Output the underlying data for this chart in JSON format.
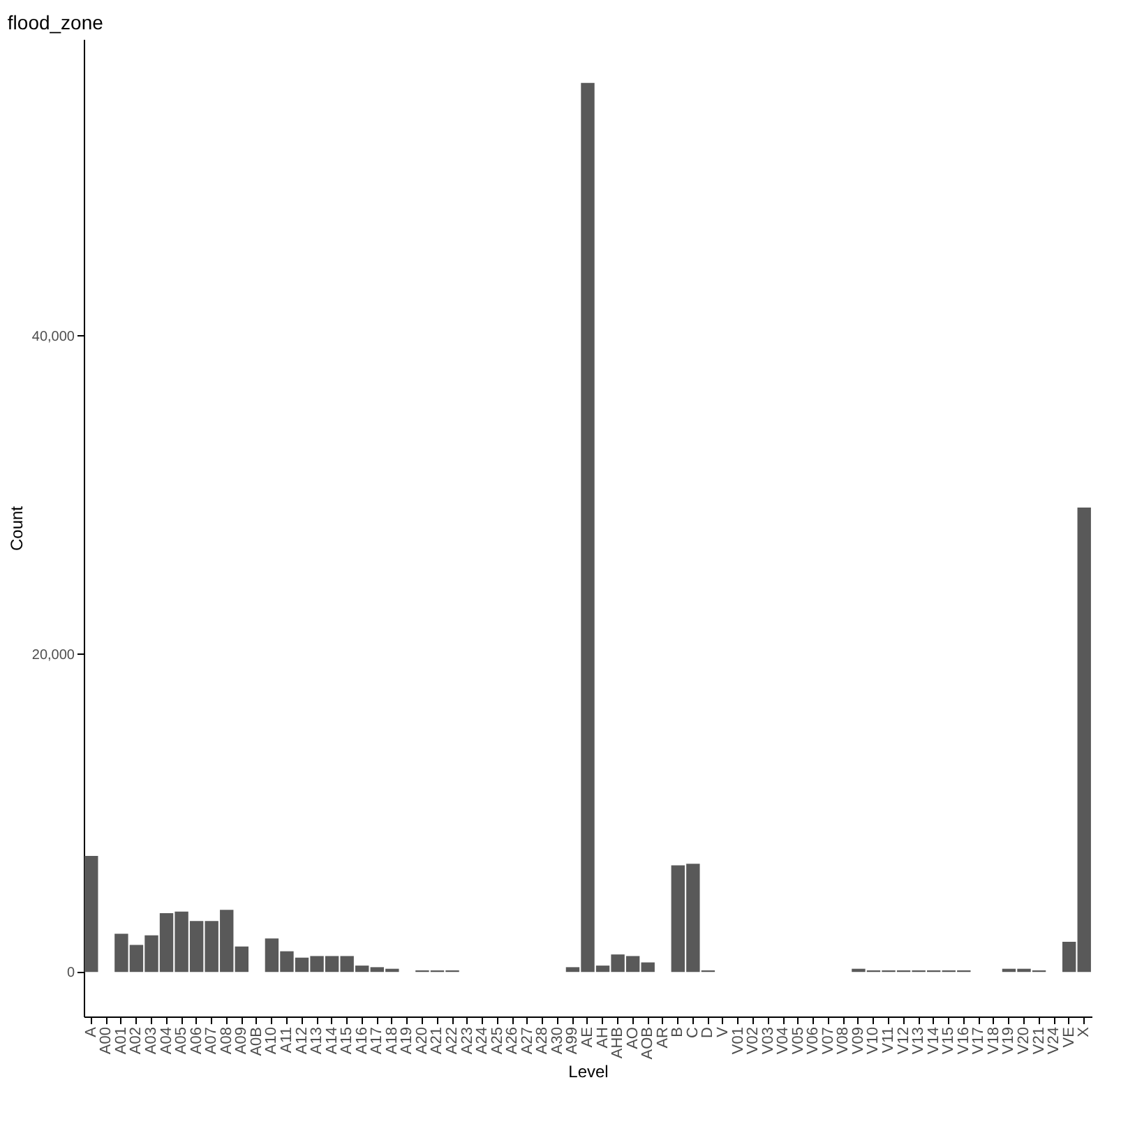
{
  "chart_data": {
    "type": "bar",
    "title": "flood_zone",
    "xlabel": "Level",
    "ylabel": "Count",
    "categories": [
      "A",
      "A00",
      "A01",
      "A02",
      "A03",
      "A04",
      "A05",
      "A06",
      "A07",
      "A08",
      "A09",
      "A0B",
      "A10",
      "A11",
      "A12",
      "A13",
      "A14",
      "A15",
      "A16",
      "A17",
      "A18",
      "A19",
      "A20",
      "A21",
      "A22",
      "A23",
      "A24",
      "A25",
      "A26",
      "A27",
      "A28",
      "A30",
      "A99",
      "AE",
      "AH",
      "AHB",
      "AO",
      "AOB",
      "AR",
      "B",
      "C",
      "D",
      "V",
      "V01",
      "V02",
      "V03",
      "V04",
      "V05",
      "V06",
      "V07",
      "V08",
      "V09",
      "V10",
      "V11",
      "V12",
      "V13",
      "V14",
      "V15",
      "V16",
      "V17",
      "V18",
      "V19",
      "V20",
      "V21",
      "V24",
      "VE",
      "X"
    ],
    "values": [
      7300,
      0,
      2400,
      1700,
      2300,
      3700,
      3800,
      3200,
      3200,
      3900,
      1600,
      0,
      2100,
      1300,
      900,
      1000,
      1000,
      1000,
      400,
      300,
      200,
      0,
      100,
      100,
      100,
      0,
      0,
      0,
      0,
      0,
      0,
      0,
      300,
      55900,
      400,
      1100,
      1000,
      600,
      0,
      6700,
      6800,
      100,
      0,
      0,
      0,
      0,
      0,
      0,
      0,
      0,
      0,
      200,
      100,
      100,
      100,
      100,
      100,
      100,
      100,
      0,
      0,
      200,
      200,
      100,
      0,
      1900,
      29200
    ],
    "color": "#595959",
    "ylim": [
      -2800,
      58650
    ],
    "yticks": [
      {
        "value": 0,
        "label": "0"
      },
      {
        "value": 20000,
        "label": "20,000"
      },
      {
        "value": 40000,
        "label": "40,000"
      }
    ],
    "grid": false
  }
}
